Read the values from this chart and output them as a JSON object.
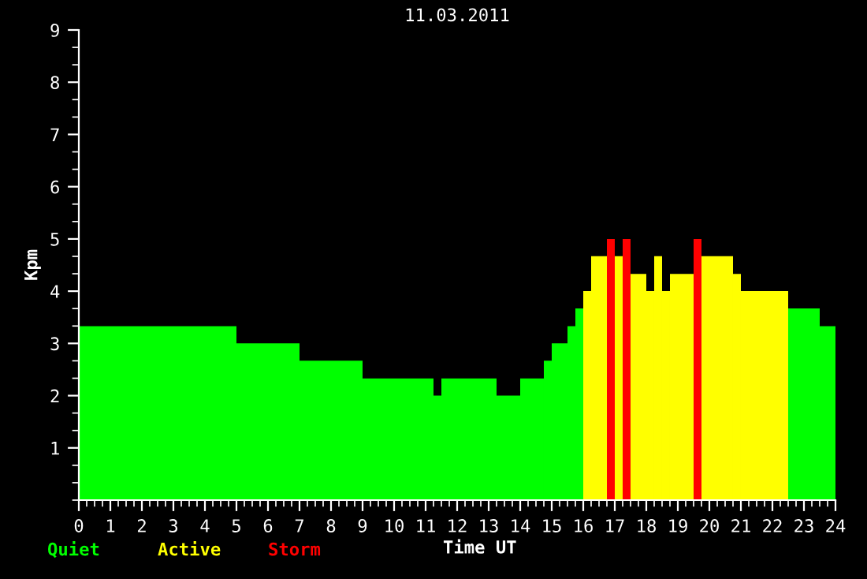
{
  "chart_data": {
    "type": "histogram",
    "title": "11.03.2011",
    "xlabel": "Time UT",
    "ylabel": "Kpm",
    "bins": [
      0,
      5,
      7,
      9,
      11.25,
      11.5,
      13.25,
      14,
      14.75,
      15,
      15.5,
      15.75,
      16,
      16.25,
      16.75,
      17,
      17.25,
      17.5,
      18,
      18.25,
      18.5,
      18.75,
      19.5,
      19.75,
      20.75,
      21,
      22.5,
      23.5,
      24
    ],
    "values": [
      3.33,
      3.0,
      2.67,
      2.33,
      2.0,
      2.33,
      2.0,
      2.33,
      2.67,
      3.0,
      3.33,
      3.67,
      4.0,
      4.67,
      5.0,
      4.67,
      5.0,
      4.33,
      4.0,
      4.67,
      4.0,
      4.33,
      5.0,
      4.67,
      4.33,
      4.0,
      3.67,
      3.33
    ],
    "colors": [
      "#00ff00",
      "#00ff00",
      "#00ff00",
      "#00ff00",
      "#00ff00",
      "#00ff00",
      "#00ff00",
      "#00ff00",
      "#00ff00",
      "#00ff00",
      "#00ff00",
      "#00ff00",
      "#ffff00",
      "#ffff00",
      "#ff0000",
      "#ffff00",
      "#ff0000",
      "#ffff00",
      "#ffff00",
      "#ffff00",
      "#ffff00",
      "#ffff00",
      "#ff0000",
      "#ffff00",
      "#ffff00",
      "#ffff00",
      "#00ff00",
      "#00ff00"
    ],
    "annotations": [
      "Quiet",
      "Active",
      "Storm"
    ],
    "xlim": [
      0,
      24
    ],
    "xticks": [
      0,
      1,
      2,
      3,
      4,
      5,
      6,
      7,
      8,
      9,
      10,
      11,
      12,
      13,
      14,
      15,
      16,
      17,
      18,
      19,
      20,
      21,
      22,
      23,
      24
    ],
    "ylim": [
      0,
      9
    ],
    "yticks": [
      1,
      2,
      3,
      4,
      5,
      6,
      7,
      8,
      9
    ]
  }
}
